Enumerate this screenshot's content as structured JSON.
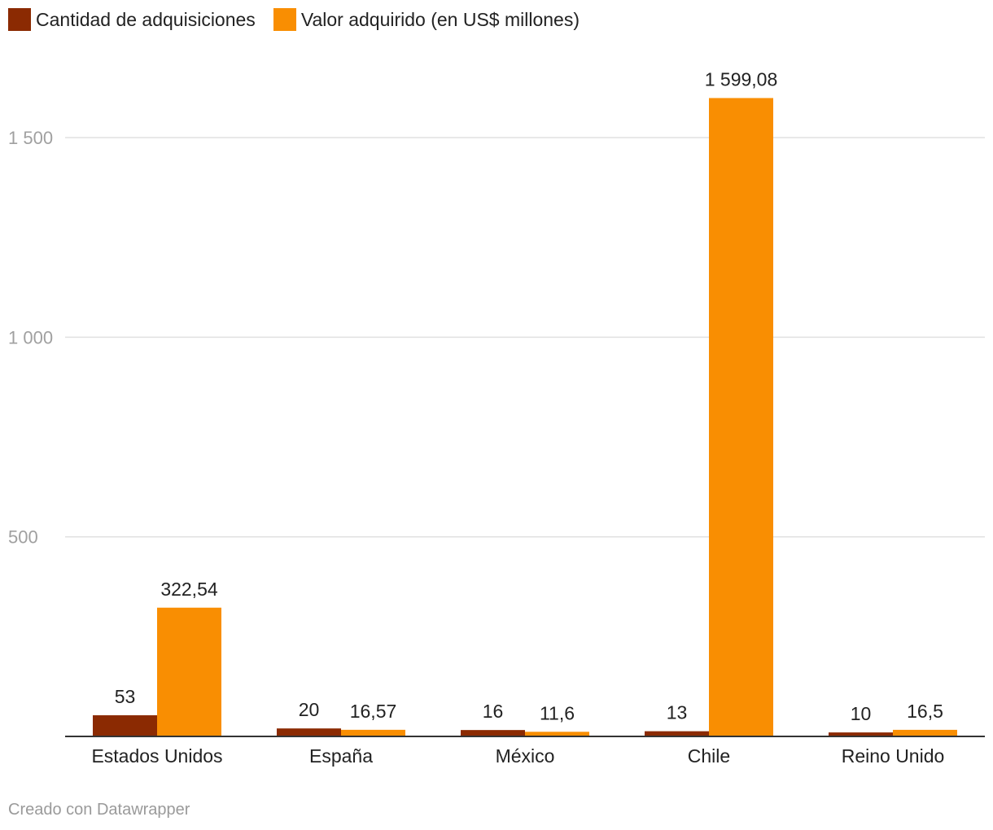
{
  "chart_data": {
    "type": "bar",
    "title": "",
    "xlabel": "",
    "ylabel": "",
    "categories": [
      "Estados Unidos",
      "España",
      "México",
      "Chile",
      "Reino Unido"
    ],
    "series": [
      {
        "name": "Cantidad de adquisiciones",
        "color": "#8b2a02",
        "values": [
          53,
          20,
          16,
          13,
          10
        ],
        "labels": [
          "53",
          "20",
          "16",
          "13",
          "10"
        ]
      },
      {
        "name": "Valor adquirido (en US$ millones)",
        "color": "#f98e02",
        "values": [
          322.54,
          16.57,
          11.6,
          1599.08,
          16.5
        ],
        "labels": [
          "322,54",
          "16,57",
          "11,6",
          "1 599,08",
          "16,5"
        ]
      }
    ],
    "ylim": [
      0,
      1700
    ],
    "yticks": [
      {
        "value": 500,
        "label": "500"
      },
      {
        "value": 1000,
        "label": "1 000"
      },
      {
        "value": 1500,
        "label": "1 500"
      }
    ],
    "grid": true,
    "legend": "top-left"
  },
  "footer": {
    "credit": "Creado con Datawrapper"
  }
}
